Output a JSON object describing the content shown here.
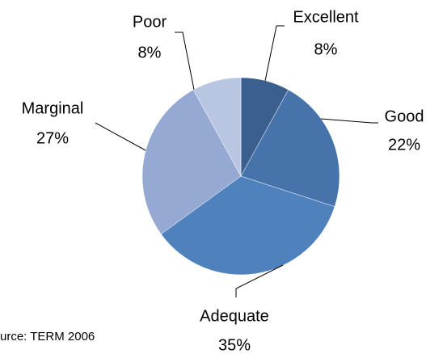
{
  "chart_data": {
    "type": "pie",
    "categories": [
      "Excellent",
      "Good",
      "Adequate",
      "Marginal",
      "Poor"
    ],
    "values": [
      8,
      22,
      35,
      27,
      8
    ],
    "value_labels": [
      "8%",
      "22%",
      "35%",
      "27%",
      "8%"
    ],
    "colors": [
      "#3b6090",
      "#4674aa",
      "#4f81bd",
      "#95a9d2",
      "#b8c6e2"
    ],
    "source": "urce: TERM 2006"
  }
}
